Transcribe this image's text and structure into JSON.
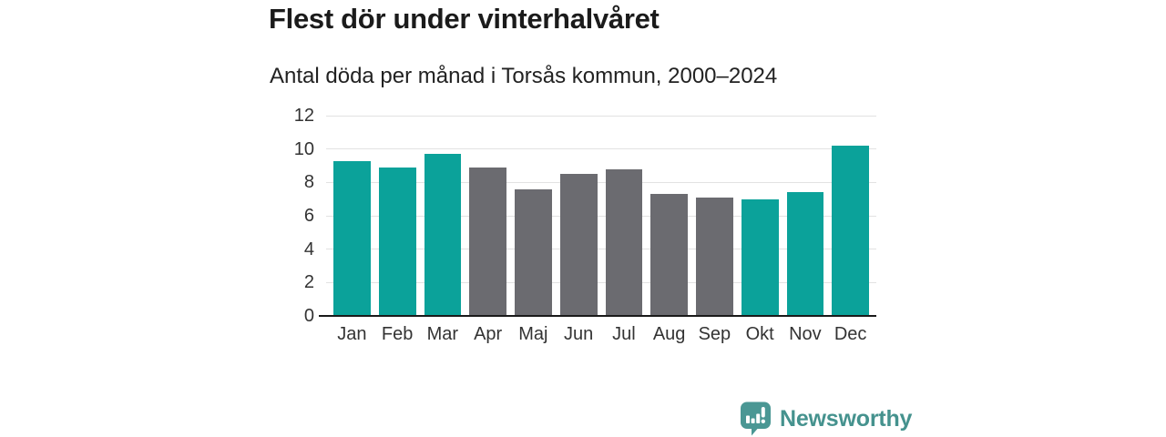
{
  "header": {
    "title": "Flest dör under vinterhalvåret",
    "subtitle": "Antal döda per månad i Torsås kommun, 2000–2024"
  },
  "chart_data": {
    "type": "bar",
    "title": "Flest dör under vinterhalvåret",
    "subtitle": "Antal döda per månad i Torsås kommun, 2000–2024",
    "categories": [
      "Jan",
      "Feb",
      "Mar",
      "Apr",
      "Maj",
      "Jun",
      "Jul",
      "Aug",
      "Sep",
      "Okt",
      "Nov",
      "Dec"
    ],
    "values": [
      9.3,
      8.9,
      9.7,
      8.9,
      7.6,
      8.5,
      8.8,
      7.3,
      7.1,
      7.0,
      7.4,
      10.2
    ],
    "bar_color_keys": [
      "winter",
      "winter",
      "winter",
      "summer",
      "summer",
      "summer",
      "summer",
      "summer",
      "summer",
      "winter",
      "winter",
      "winter"
    ],
    "colors": {
      "winter": "#0ba29a",
      "summer": "#6b6b70"
    },
    "xlabel": "",
    "ylabel": "",
    "ylim": [
      0,
      12
    ],
    "yticks": [
      0,
      2,
      4,
      6,
      8,
      10,
      12
    ],
    "grid": true,
    "legend": "none"
  },
  "footer": {
    "brand": "Newsworthy",
    "brand_color": "#45928e",
    "logo_icon": "bar-chart-speech-bubble"
  }
}
